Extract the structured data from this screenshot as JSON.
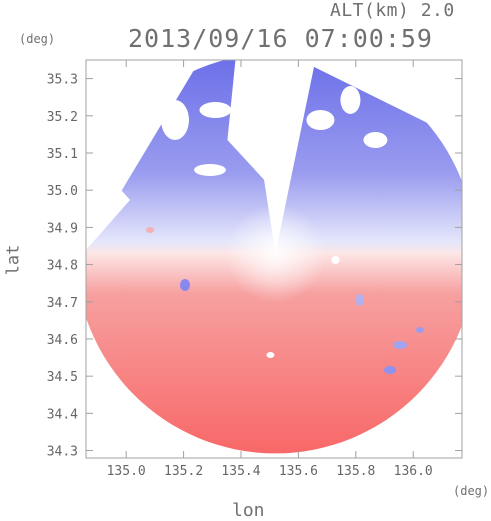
{
  "header": {
    "altitude_label": "ALT(km) 2.0",
    "timestamp": "2013/09/16 07:00:59"
  },
  "axes": {
    "x_label": "lon",
    "y_label": "lat",
    "x_unit": "(deg)",
    "y_unit": "(deg)",
    "x_ticks": [
      "135.0",
      "135.2",
      "135.4",
      "135.6",
      "135.8",
      "136.0"
    ],
    "y_ticks": [
      "35.3",
      "35.2",
      "35.1",
      "35.0",
      "34.9",
      "34.8",
      "34.7",
      "34.6",
      "34.5",
      "34.4",
      "34.3"
    ],
    "x_range": [
      134.86,
      136.17
    ],
    "y_range": [
      34.28,
      35.35
    ]
  },
  "radar": {
    "center_lon": 135.52,
    "center_lat": 34.83,
    "color_approaching": "#6a6ee8",
    "color_receding": "#f86a6a"
  }
}
